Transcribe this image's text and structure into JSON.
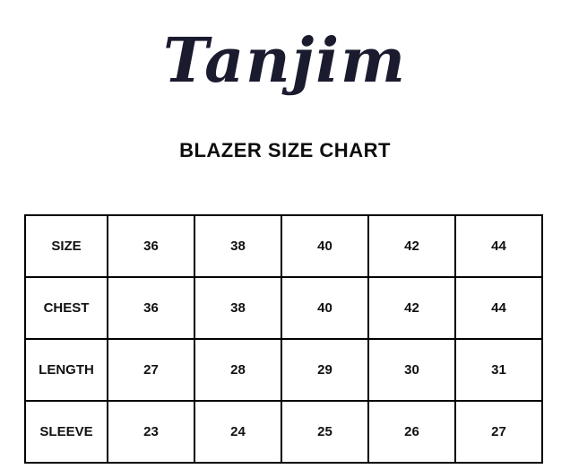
{
  "brand": {
    "logo_text": "Tanjim",
    "logo_color": "#1a1b2e"
  },
  "heading": "BLAZER SIZE CHART",
  "chart_data": {
    "type": "table",
    "title": "BLAZER SIZE CHART",
    "rows": [
      {
        "label": "SIZE",
        "values": [
          "36",
          "38",
          "40",
          "42",
          "44"
        ]
      },
      {
        "label": "CHEST",
        "values": [
          "36",
          "38",
          "40",
          "42",
          "44"
        ]
      },
      {
        "label": "LENGTH",
        "values": [
          "27",
          "28",
          "29",
          "30",
          "31"
        ]
      },
      {
        "label": "SLEEVE",
        "values": [
          "23",
          "24",
          "25",
          "26",
          "27"
        ]
      }
    ]
  }
}
